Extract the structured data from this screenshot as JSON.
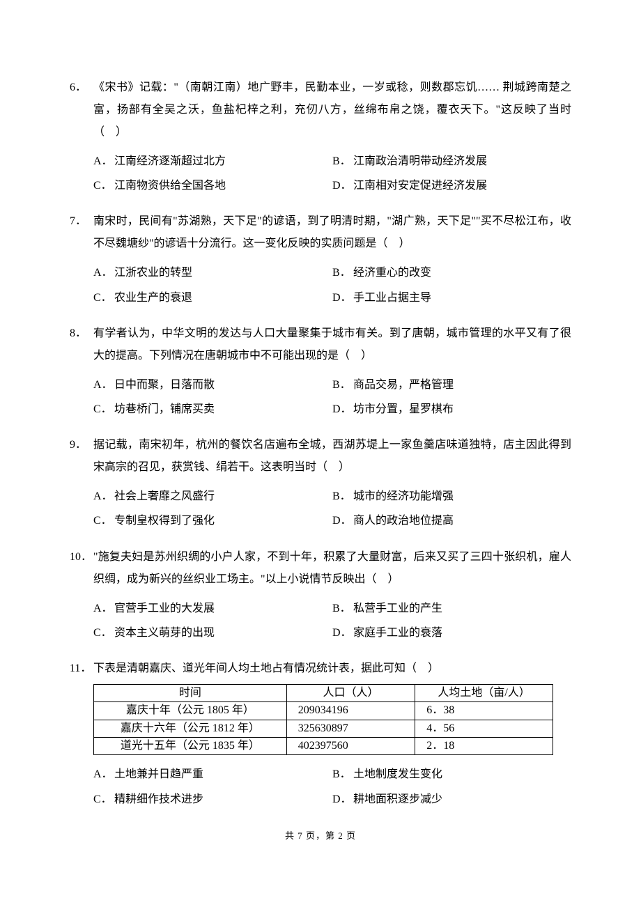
{
  "questions": [
    {
      "num": "6．",
      "stem": "《宋书》记载：\"（南朝江南）地广野丰，民勤本业，一岁或稔，则数郡忘饥…… 荆城跨南楚之富，扬部有全吴之沃，鱼盐杞梓之利，充仞八方，丝绵布帛之饶，覆衣天下。\"这反映了当时（　）",
      "options": [
        {
          "label": "A．",
          "text": "江南经济逐渐超过北方"
        },
        {
          "label": "B．",
          "text": "江南政治清明带动经济发展"
        },
        {
          "label": "C．",
          "text": "江南物资供给全国各地"
        },
        {
          "label": "D．",
          "text": "江南相对安定促进经济发展"
        }
      ],
      "cols": 2
    },
    {
      "num": "7．",
      "stem": "南宋时，民间有\"苏湖熟，天下足\"的谚语，到了明清时期，\"湖广熟，天下足\"\"买不尽松江布，收不尽魏塘纱\"的谚语十分流行。这一变化反映的实质问题是（　）",
      "options": [
        {
          "label": "A．",
          "text": " 江浙农业的转型"
        },
        {
          "label": "B．",
          "text": " 经济重心的改变"
        },
        {
          "label": "C．",
          "text": " 农业生产的衰退"
        },
        {
          "label": "D．",
          "text": " 手工业占据主导"
        }
      ],
      "cols": 2
    },
    {
      "num": "8．",
      "stem": "有学者认为，中华文明的发达与人口大量聚集于城市有关。到了唐朝，城市管理的水平又有了很大的提高。下列情况在唐朝城市中不可能出现的是（　）",
      "options": [
        {
          "label": "A．",
          "text": "日中而聚，日落而散"
        },
        {
          "label": "B．",
          "text": "商品交易，严格管理"
        },
        {
          "label": "C．",
          "text": "坊巷桥门，铺席买卖"
        },
        {
          "label": "D．",
          "text": "坊市分置，星罗棋布"
        }
      ],
      "cols": 2
    },
    {
      "num": "9．",
      "stem": "据记载，南宋初年，杭州的餐饮名店遍布全城，西湖苏堤上一家鱼羹店味道独特，店主因此得到宋高宗的召见，获赏钱、绢若干。这表明当时（　）",
      "options": [
        {
          "label": "A．",
          "text": "社会上奢靡之风盛行"
        },
        {
          "label": "B．",
          "text": "城市的经济功能增强"
        },
        {
          "label": "C．",
          "text": "专制皇权得到了强化"
        },
        {
          "label": "D．",
          "text": "商人的政治地位提高"
        }
      ],
      "cols": 2
    },
    {
      "num": "10．",
      "stem": "\"施复夫妇是苏州织绸的小户人家，不到十年，积累了大量财富，后来又买了三四十张织机，雇人织绸，成为新兴的丝织业工场主。\"以上小说情节反映出（　）",
      "options": [
        {
          "label": "A．",
          "text": "官营手工业的大发展"
        },
        {
          "label": "B．",
          "text": "私营手工业的产生"
        },
        {
          "label": "C．",
          "text": "资本主义萌芽的出现"
        },
        {
          "label": "D．",
          "text": "家庭手工业的衰落"
        }
      ],
      "cols": 2
    },
    {
      "num": "11．",
      "stem": "下表是清朝嘉庆、道光年间人均土地占有情况统计表，据此可知（　）",
      "table": {
        "headers": [
          "时间",
          "人口（人）",
          "人均土地（亩/人）"
        ],
        "rows": [
          [
            "嘉庆十年（公元 1805 年）",
            "209034196",
            "6．38"
          ],
          [
            "嘉庆十六年（公元 1812 年）",
            "325630897",
            "4．56"
          ],
          [
            "道光十五年（公元 1835 年）",
            "402397560",
            "2．18"
          ]
        ],
        "col_widths": [
          "42%",
          "28%",
          "30%"
        ]
      },
      "options": [
        {
          "label": "A．",
          "text": "土地兼并日趋严重"
        },
        {
          "label": "B．",
          "text": "土地制度发生变化"
        },
        {
          "label": "C．",
          "text": "精耕细作技术进步"
        },
        {
          "label": "D．",
          "text": "耕地面积逐步减少"
        }
      ],
      "cols": 2
    }
  ],
  "footer": "共 7 页，第 2 页"
}
